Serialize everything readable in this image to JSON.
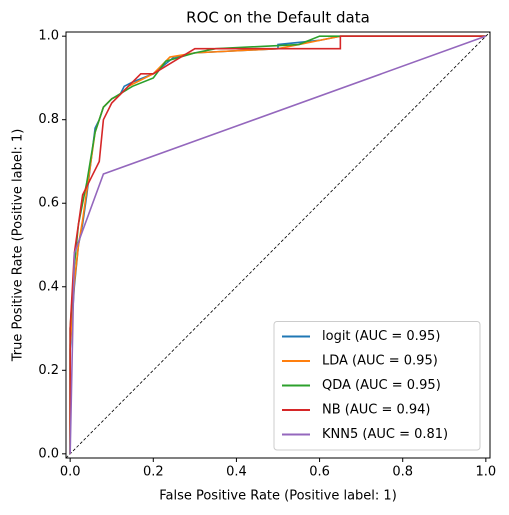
{
  "chart_data": {
    "type": "line",
    "title": "ROC on the Default data",
    "xlabel": "False Positive Rate (Positive label: 1)",
    "ylabel": "True Positive Rate (Positive label: 1)",
    "xlim": [
      -0.01,
      1.01
    ],
    "ylim": [
      -0.01,
      1.01
    ],
    "xticks": [
      {
        "value": 0,
        "label": "0.0"
      },
      0.2,
      0.4,
      0.6,
      0.8,
      {
        "value": 1,
        "label": "1.0"
      }
    ],
    "yticks": [
      {
        "value": 0,
        "label": "0.0"
      },
      0.2,
      0.4,
      0.6,
      0.8,
      {
        "value": 1,
        "label": "1.0"
      }
    ],
    "legend": "lower right",
    "series": [
      {
        "name": "logit (AUC = 0.95)",
        "color": "#1f77b4",
        "x": [
          0,
          0,
          0.01,
          0.02,
          0.03,
          0.04,
          0.05,
          0.06,
          0.07,
          0.08,
          0.1,
          0.12,
          0.13,
          0.15,
          0.2,
          0.25,
          0.3,
          0.5,
          0.5,
          0.6,
          0.65,
          1
        ],
        "values": [
          0,
          0.25,
          0.4,
          0.5,
          0.55,
          0.62,
          0.7,
          0.78,
          0.8,
          0.83,
          0.85,
          0.86,
          0.88,
          0.89,
          0.91,
          0.95,
          0.96,
          0.97,
          0.98,
          0.99,
          1,
          1
        ]
      },
      {
        "name": "LDA (AUC = 0.95)",
        "color": "#ff7f0e",
        "x": [
          0,
          0,
          0.01,
          0.02,
          0.03,
          0.04,
          0.05,
          0.06,
          0.07,
          0.08,
          0.1,
          0.12,
          0.14,
          0.16,
          0.2,
          0.24,
          0.3,
          0.5,
          0.55,
          0.6,
          0.65,
          1
        ],
        "values": [
          0,
          0.26,
          0.41,
          0.5,
          0.56,
          0.63,
          0.7,
          0.77,
          0.8,
          0.83,
          0.85,
          0.86,
          0.88,
          0.89,
          0.91,
          0.95,
          0.96,
          0.97,
          0.98,
          0.99,
          1,
          1
        ]
      },
      {
        "name": "QDA (AUC = 0.95)",
        "color": "#2ca02c",
        "x": [
          0,
          0,
          0.01,
          0.02,
          0.04,
          0.06,
          0.08,
          0.1,
          0.15,
          0.2,
          0.23,
          0.3,
          0.35,
          0.55,
          0.6,
          1
        ],
        "values": [
          0,
          0.3,
          0.45,
          0.55,
          0.65,
          0.77,
          0.83,
          0.85,
          0.88,
          0.9,
          0.94,
          0.96,
          0.97,
          0.98,
          1,
          1
        ]
      },
      {
        "name": "NB (AUC = 0.94)",
        "color": "#d62728",
        "x": [
          0,
          0,
          0.01,
          0.03,
          0.05,
          0.07,
          0.08,
          0.1,
          0.12,
          0.17,
          0.2,
          0.25,
          0.3,
          0.65,
          0.65,
          1
        ],
        "values": [
          0,
          0.3,
          0.48,
          0.62,
          0.66,
          0.7,
          0.8,
          0.84,
          0.86,
          0.91,
          0.91,
          0.94,
          0.97,
          0.97,
          1,
          1
        ]
      },
      {
        "name": "KNN5 (AUC = 0.81)",
        "color": "#9467bd",
        "x": [
          0,
          0.01,
          0.08,
          1
        ],
        "values": [
          0,
          0.48,
          0.67,
          1
        ]
      }
    ]
  }
}
